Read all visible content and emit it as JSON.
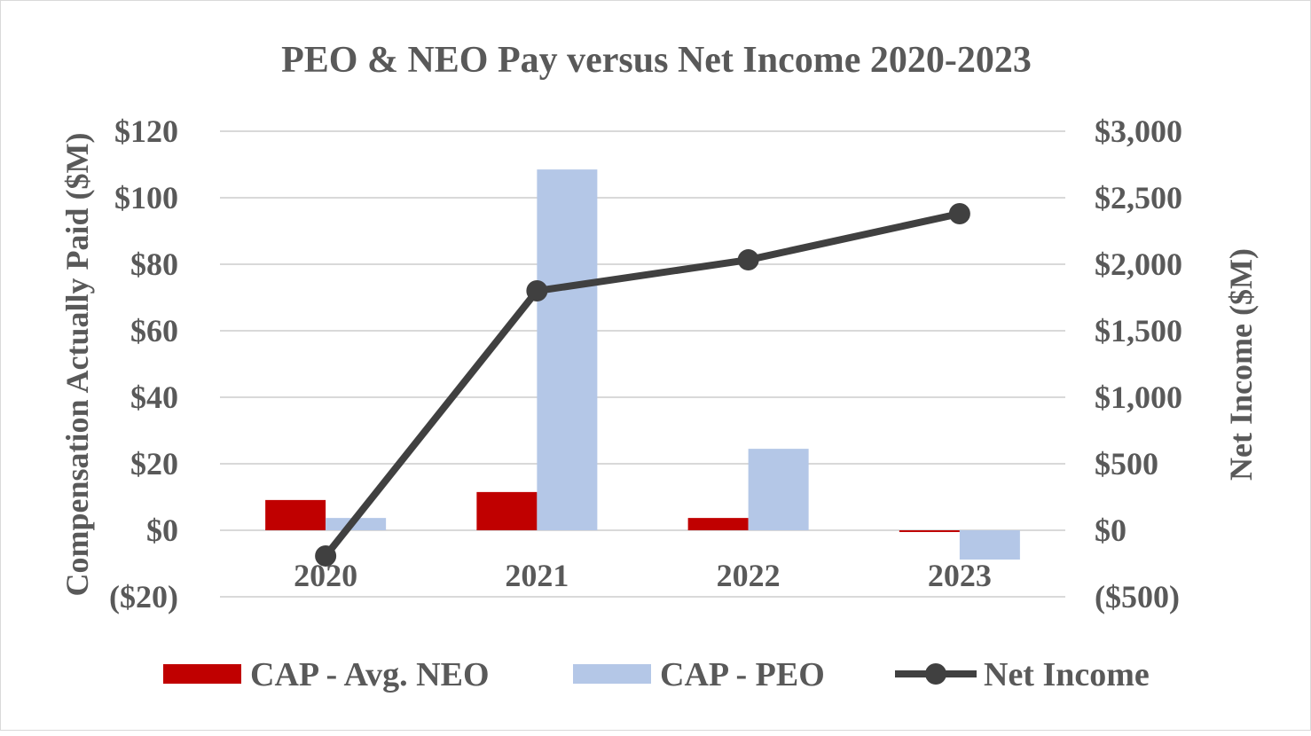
{
  "chart_data": {
    "type": "bar+line",
    "title": "PEO & NEO Pay versus Net Income 2020-2023",
    "categories": [
      "2020",
      "2021",
      "2022",
      "2023"
    ],
    "ylabel": "Compensation Actually Paid ($M)",
    "y2label": "Net Income ($M)",
    "ylim": [
      -20,
      120
    ],
    "y2lim": [
      -500,
      3000
    ],
    "yticks": [
      "($20)",
      "$0",
      "$20",
      "$40",
      "$60",
      "$80",
      "$100",
      "$120"
    ],
    "yticks_values": [
      -20,
      0,
      20,
      40,
      60,
      80,
      100,
      120
    ],
    "y2ticks": [
      "($500)",
      "$0",
      "$500",
      "$1,000",
      "$1,500",
      "$2,000",
      "$2,500",
      "$3,000"
    ],
    "y2ticks_values": [
      -500,
      0,
      500,
      1000,
      1500,
      2000,
      2500,
      3000
    ],
    "grid": true,
    "legend_position": "bottom",
    "series": [
      {
        "name": "CAP - Avg. NEO",
        "type": "bar",
        "axis": "left",
        "color": "#c00000",
        "values": [
          9.1,
          11.5,
          3.7,
          -0.5
        ]
      },
      {
        "name": "CAP - PEO",
        "type": "bar",
        "axis": "left",
        "color": "#b4c7e7",
        "values": [
          3.7,
          108.5,
          24.5,
          -8.8
        ]
      },
      {
        "name": "Net Income",
        "type": "line",
        "axis": "right",
        "color": "#404040",
        "values": [
          -193,
          1800,
          2033,
          2380
        ]
      }
    ]
  }
}
